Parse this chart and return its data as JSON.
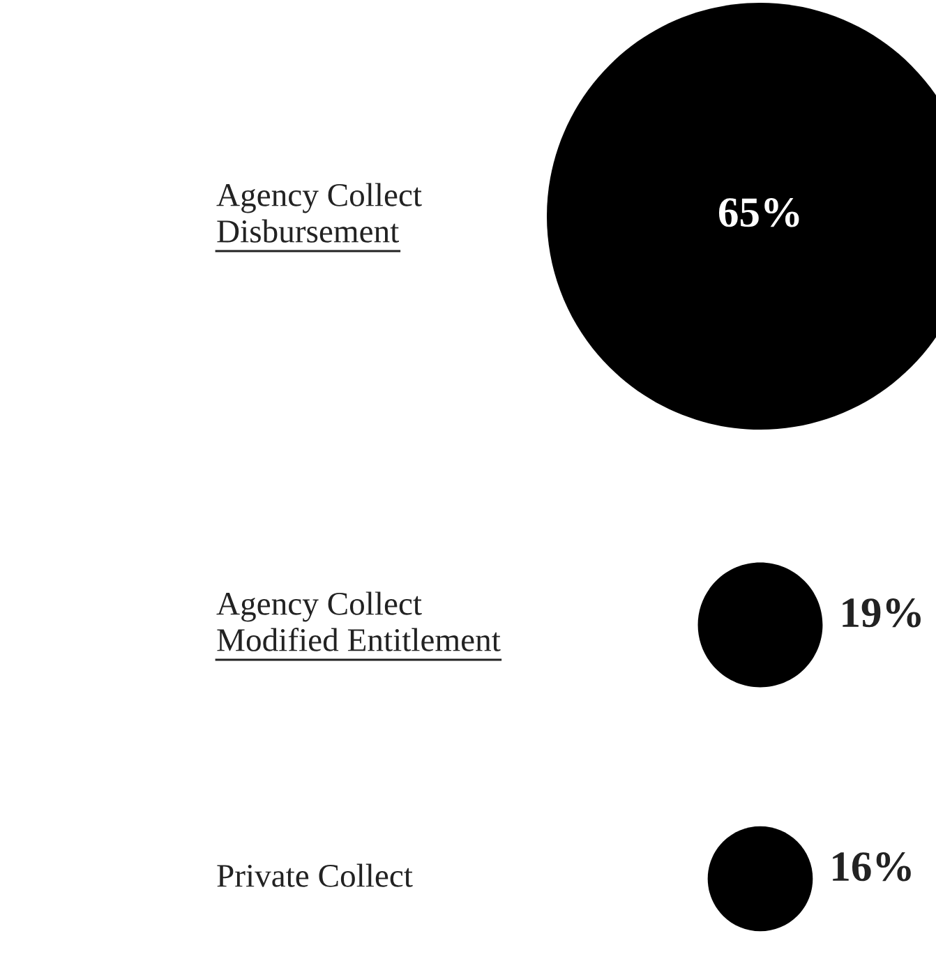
{
  "chart_data": {
    "type": "other",
    "categories": [
      "Agency Collect\nDisbursement",
      "Agency Collect\nModified Entitlement",
      "Private Collect"
    ],
    "values": [
      65,
      19,
      16
    ],
    "value_labels": [
      "65%",
      "19%",
      "16%"
    ],
    "color": "#000000"
  }
}
